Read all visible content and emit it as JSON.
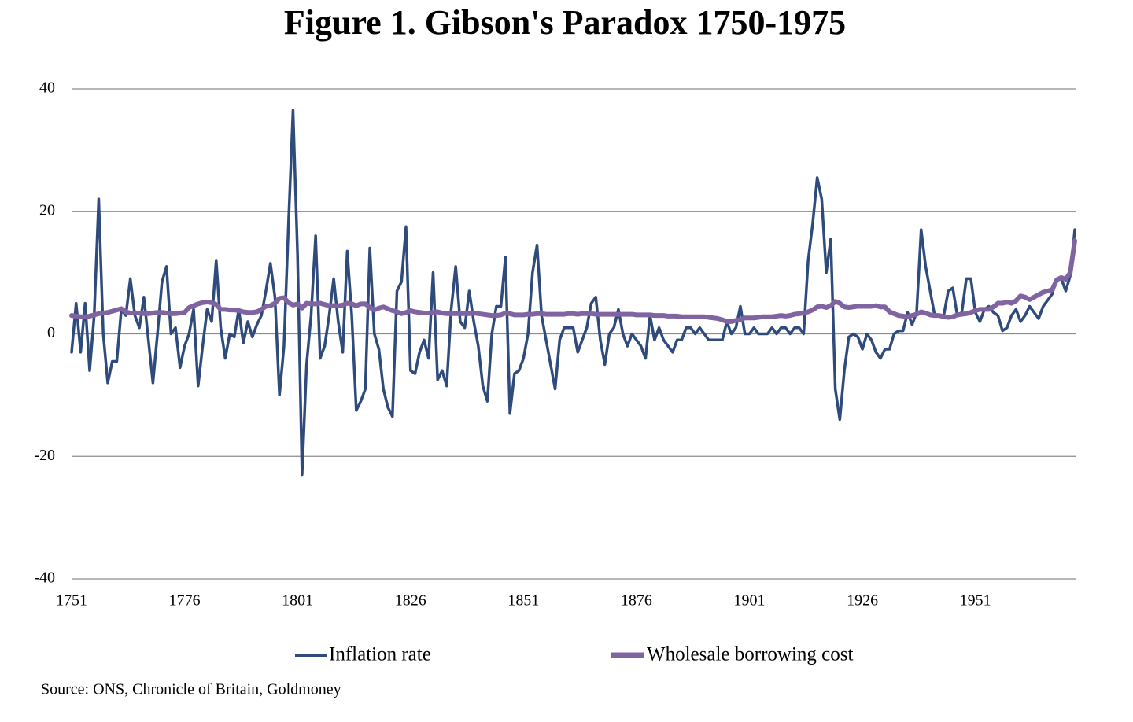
{
  "chart_data": {
    "type": "line",
    "title": "Figure 1. Gibson's Paradox 1750-1975",
    "source": "Source: ONS, Chronicle of Britain, Goldmoney",
    "x": [
      1751,
      1752,
      1753,
      1754,
      1755,
      1756,
      1757,
      1758,
      1759,
      1760,
      1761,
      1762,
      1763,
      1764,
      1765,
      1766,
      1767,
      1768,
      1769,
      1770,
      1771,
      1772,
      1773,
      1774,
      1775,
      1776,
      1777,
      1778,
      1779,
      1780,
      1781,
      1782,
      1783,
      1784,
      1785,
      1786,
      1787,
      1788,
      1789,
      1790,
      1791,
      1792,
      1793,
      1794,
      1795,
      1796,
      1797,
      1798,
      1799,
      1800,
      1801,
      1802,
      1803,
      1804,
      1805,
      1806,
      1807,
      1808,
      1809,
      1810,
      1811,
      1812,
      1813,
      1814,
      1815,
      1816,
      1817,
      1818,
      1819,
      1820,
      1821,
      1822,
      1823,
      1824,
      1825,
      1826,
      1827,
      1828,
      1829,
      1830,
      1831,
      1832,
      1833,
      1834,
      1835,
      1836,
      1837,
      1838,
      1839,
      1840,
      1841,
      1842,
      1843,
      1844,
      1845,
      1846,
      1847,
      1848,
      1849,
      1850,
      1851,
      1852,
      1853,
      1854,
      1855,
      1856,
      1857,
      1858,
      1859,
      1860,
      1861,
      1862,
      1863,
      1864,
      1865,
      1866,
      1867,
      1868,
      1869,
      1870,
      1871,
      1872,
      1873,
      1874,
      1875,
      1876,
      1877,
      1878,
      1879,
      1880,
      1881,
      1882,
      1883,
      1884,
      1885,
      1886,
      1887,
      1888,
      1889,
      1890,
      1891,
      1892,
      1893,
      1894,
      1895,
      1896,
      1897,
      1898,
      1899,
      1900,
      1901,
      1902,
      1903,
      1904,
      1905,
      1906,
      1907,
      1908,
      1909,
      1910,
      1911,
      1912,
      1913,
      1914,
      1915,
      1916,
      1917,
      1918,
      1919,
      1920,
      1921,
      1922,
      1923,
      1924,
      1925,
      1926,
      1927,
      1928,
      1929,
      1930,
      1931,
      1932,
      1933,
      1934,
      1935,
      1936,
      1937,
      1938,
      1939,
      1940,
      1941,
      1942,
      1943,
      1944,
      1945,
      1946,
      1947,
      1948,
      1949,
      1950,
      1951,
      1952,
      1953,
      1954,
      1955,
      1956,
      1957,
      1958,
      1959,
      1960,
      1961,
      1962,
      1963,
      1964,
      1965,
      1966,
      1967,
      1968,
      1969,
      1970,
      1971,
      1972,
      1973
    ],
    "series": [
      {
        "name": "Inflation rate",
        "color": "#2f4b7c",
        "values": [
          -3,
          5,
          -3,
          5,
          -6,
          3,
          22,
          0,
          -8,
          -4.5,
          -4.5,
          4,
          3,
          9,
          3,
          1,
          6,
          -1,
          -8,
          0,
          8.5,
          11,
          0,
          1,
          -5.5,
          -2,
          0,
          4,
          -8.5,
          -2,
          4,
          2,
          12,
          1,
          -4,
          0,
          -0.5,
          4,
          -1.5,
          2,
          -0.5,
          1.5,
          3,
          7,
          11.5,
          6,
          -10,
          -2,
          18,
          36.5,
          13,
          -23,
          -5,
          3,
          16,
          -4,
          -2,
          3,
          9,
          2,
          -3,
          13.5,
          3,
          -12.5,
          -11,
          -9,
          14,
          0,
          -2.5,
          -9,
          -12,
          -13.5,
          7,
          8.5,
          17.5,
          -6,
          -6.5,
          -3,
          -1,
          -4,
          10,
          -7.5,
          -6,
          -8.5,
          4,
          11,
          2,
          1,
          7,
          2,
          -2,
          -8.5,
          -11,
          0,
          4.5,
          4.5,
          12.5,
          -13,
          -6.5,
          -6,
          -4,
          0,
          10,
          14.5,
          3,
          -1,
          -5,
          -9,
          -1,
          1,
          1,
          1,
          -3,
          -1,
          1,
          5,
          6,
          -1,
          -5,
          0,
          1,
          4,
          0,
          -2,
          0,
          -1,
          -2,
          -4,
          3,
          -1,
          1,
          -1,
          -2,
          -3,
          -1,
          -1,
          1,
          1,
          0,
          1,
          0,
          -1,
          -1,
          -1,
          -1,
          2,
          0,
          1,
          4.5,
          0,
          0,
          1,
          0,
          0,
          0,
          1,
          0,
          1,
          1,
          0,
          1,
          1,
          0,
          12,
          18,
          25.5,
          22,
          10,
          15.5,
          -9,
          -14,
          -6,
          -0.5,
          0,
          -0.5,
          -2.5,
          0,
          -1,
          -3,
          -4,
          -2.5,
          -2.5,
          0,
          0.5,
          0.5,
          3.5,
          1.5,
          3.5,
          17,
          11,
          7,
          3,
          3,
          3,
          7,
          7.5,
          3,
          3.5,
          9,
          9,
          3.5,
          2,
          4,
          4.5,
          3.5,
          3,
          0.5,
          1,
          3,
          4,
          2,
          3,
          4.5,
          3.5,
          2.5,
          4.5,
          5.5,
          6.5,
          9,
          9,
          7,
          9.5,
          17
        ]
      },
      {
        "name": "Wholesale borrowing cost",
        "color": "#8064a2",
        "values": [
          3,
          2.9,
          2.8,
          2.8,
          2.9,
          3.1,
          3.3,
          3.4,
          3.5,
          3.7,
          3.9,
          4.1,
          3.6,
          3.4,
          3.4,
          3.4,
          3.3,
          3.3,
          3.4,
          3.5,
          3.5,
          3.4,
          3.3,
          3.3,
          3.4,
          3.5,
          4.3,
          4.6,
          4.9,
          5.1,
          5.2,
          5.1,
          4.8,
          4,
          4,
          3.9,
          3.9,
          3.8,
          3.6,
          3.5,
          3.5,
          3.6,
          4,
          4.5,
          4.6,
          5,
          5.8,
          5.9,
          5.1,
          4.7,
          4.9,
          4.2,
          5,
          4.9,
          4.9,
          5,
          4.8,
          4.6,
          4.6,
          4.6,
          4.7,
          5,
          4.9,
          4.6,
          4.9,
          4.9,
          4.3,
          3.9,
          4.2,
          4.4,
          4.1,
          3.8,
          3.6,
          3.3,
          3.5,
          3.8,
          3.6,
          3.5,
          3.4,
          3.4,
          3.5,
          3.6,
          3.4,
          3.3,
          3.3,
          3.3,
          3.3,
          3.3,
          3.3,
          3.4,
          3.3,
          3.2,
          3.1,
          3,
          3,
          3.1,
          3.4,
          3.3,
          3.1,
          3.1,
          3.1,
          3.2,
          3.2,
          3.3,
          3.3,
          3.2,
          3.2,
          3.2,
          3.2,
          3.2,
          3.3,
          3.3,
          3.2,
          3.3,
          3.3,
          3.3,
          3.2,
          3.2,
          3.2,
          3.2,
          3.2,
          3.2,
          3.2,
          3.2,
          3.2,
          3.1,
          3.1,
          3.1,
          3.1,
          3,
          3,
          3,
          2.9,
          2.9,
          2.9,
          2.8,
          2.8,
          2.8,
          2.8,
          2.8,
          2.8,
          2.7,
          2.6,
          2.5,
          2.3,
          2,
          2,
          2.2,
          2.3,
          2.6,
          2.6,
          2.6,
          2.7,
          2.8,
          2.8,
          2.8,
          2.9,
          3,
          2.9,
          3,
          3.2,
          3.3,
          3.4,
          3.6,
          3.9,
          4.4,
          4.5,
          4.3,
          4.6,
          5.3,
          5,
          4.4,
          4.3,
          4.4,
          4.5,
          4.5,
          4.5,
          4.5,
          4.6,
          4.4,
          4.4,
          3.6,
          3.3,
          3,
          2.9,
          2.8,
          3,
          3.2,
          3.6,
          3.4,
          3.1,
          3,
          3,
          2.8,
          2.7,
          2.8,
          3.1,
          3.2,
          3.3,
          3.5,
          3.8,
          4,
          4,
          4,
          4.4,
          5,
          5,
          5.2,
          5,
          5.4,
          6.2,
          6,
          5.6,
          6,
          6.4,
          6.8,
          7,
          7.2,
          8.8,
          9.2,
          8.9,
          10,
          15.2
        ]
      }
    ],
    "xlim": [
      1751,
      1973
    ],
    "xticks": [
      1751,
      1776,
      1801,
      1826,
      1851,
      1876,
      1901,
      1926,
      1951
    ],
    "ylim": [
      -40,
      40
    ],
    "yticks": [
      -40,
      -20,
      0,
      20,
      40
    ],
    "grid": true,
    "legend": "bottom"
  }
}
